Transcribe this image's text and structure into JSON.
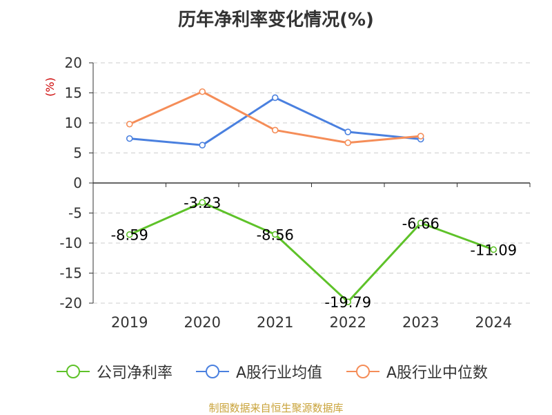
{
  "chart_data": {
    "type": "line",
    "title": "历年净利率变化情况(%)",
    "ylabel": "(%)",
    "categories": [
      "2019",
      "2020",
      "2021",
      "2022",
      "2023",
      "2024"
    ],
    "ylim": [
      -20,
      20
    ],
    "yticks": [
      20,
      15,
      10,
      5,
      0,
      -5,
      -10,
      -15,
      -20
    ],
    "grid": true,
    "legend_position": "bottom",
    "series": [
      {
        "name": "公司净利率",
        "color": "#5ec229",
        "values": [
          -8.59,
          -3.23,
          -8.56,
          -19.79,
          -6.66,
          -11.09
        ],
        "labels": [
          "-8.59",
          "-3.23",
          "-8.56",
          "-19.79",
          "-6.66",
          "-11.09"
        ]
      },
      {
        "name": "A股行业均值",
        "color": "#4a80df",
        "values": [
          7.4,
          6.3,
          14.2,
          8.5,
          7.3,
          null
        ]
      },
      {
        "name": "A股行业中位数",
        "color": "#f58d58",
        "values": [
          9.8,
          15.2,
          8.8,
          6.7,
          7.8,
          null
        ]
      }
    ]
  },
  "source_text": "制图数据来自恒生聚源数据库"
}
